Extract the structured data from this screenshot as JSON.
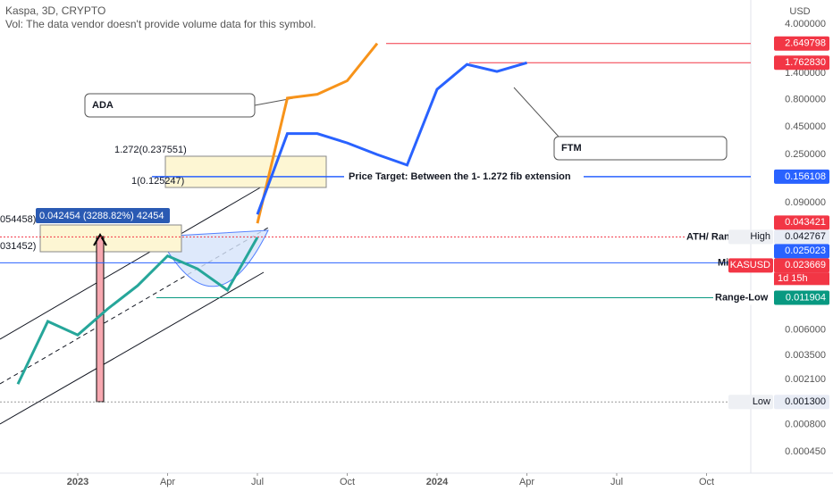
{
  "header": {
    "symbol": "Kaspa, 3D, CRYPTO",
    "volume_note": "Vol: The data vendor doesn't provide volume data for this symbol.",
    "currency": "USD"
  },
  "chart_data": {
    "type": "line",
    "log_scale": true,
    "ylim": [
      0.000286,
      6.68
    ],
    "yticks": [
      {
        "value": 4,
        "label": "4.000000"
      },
      {
        "value": 1.4,
        "label": "1.400000"
      },
      {
        "value": 0.8,
        "label": "0.800000"
      },
      {
        "value": 0.45,
        "label": "0.450000"
      },
      {
        "value": 0.25,
        "label": "0.250000"
      },
      {
        "value": 0.09,
        "label": "0.090000"
      },
      {
        "value": 0.006,
        "label": "0.006000"
      },
      {
        "value": 0.0035,
        "label": "0.003500"
      },
      {
        "value": 0.0021,
        "label": "0.002100"
      },
      {
        "value": 0.0008,
        "label": "0.000800"
      },
      {
        "value": 0.00045,
        "label": "0.000450"
      }
    ],
    "xticks": [
      {
        "value": "2023-01",
        "label": "2023"
      },
      {
        "value": "2023-04",
        "label": "Apr"
      },
      {
        "value": "2023-07",
        "label": "Jul"
      },
      {
        "value": "2023-10",
        "label": "Oct"
      },
      {
        "value": "2024-01",
        "label": "2024"
      },
      {
        "value": "2024-04",
        "label": "Apr"
      },
      {
        "value": "2024-07",
        "label": "Jul"
      },
      {
        "value": "2024-10",
        "label": "Oct"
      }
    ],
    "series": [
      {
        "name": "KASUSD",
        "color": "#26a69a",
        "x": [
          "2022-11",
          "2022-12",
          "2023-01",
          "2023-02",
          "2023-03",
          "2023-04",
          "2023-05",
          "2023-06",
          "2023-07"
        ],
        "values": [
          0.0019,
          0.0072,
          0.0054,
          0.0094,
          0.0154,
          0.029,
          0.022,
          0.014,
          0.043
        ]
      },
      {
        "name": "ADA",
        "color": "#f7931a",
        "x": [
          "2023-07",
          "2023-08",
          "2023-09",
          "2023-10",
          "2023-11"
        ],
        "values": [
          0.058,
          0.83,
          0.9,
          1.2,
          2.65
        ]
      },
      {
        "name": "FTM",
        "color": "#2962ff",
        "x": [
          "2023-07",
          "2023-08",
          "2023-09",
          "2023-10",
          "2023-11",
          "2023-12",
          "2024-01",
          "2024-02",
          "2024-03",
          "2024-04"
        ],
        "values": [
          0.07,
          0.39,
          0.39,
          0.32,
          0.25,
          0.2,
          1.0,
          1.7,
          1.46,
          1.76
        ]
      }
    ],
    "levels": [
      {
        "value": 2.649798,
        "color": "#f23645"
      },
      {
        "value": 1.76283,
        "label": "1.762830",
        "color": "#f23645"
      },
      {
        "value": 0.156108,
        "color": "#2962ff"
      },
      {
        "value": 0.043421,
        "color": "#f23645"
      },
      {
        "value": 0.042767,
        "color": "#e8ecf5",
        "tag": "High"
      },
      {
        "value": 0.025023,
        "color": "#2962ff"
      },
      {
        "value": 0.023669,
        "color": "#f23645",
        "tag": "KASUSD",
        "countdown": "1d 15h"
      },
      {
        "value": 0.011904,
        "color": "#089981"
      },
      {
        "value": 0.0013,
        "label": "0.001300",
        "color": "#e8ecf5",
        "tag": "Low"
      }
    ],
    "annotations": {
      "ada": "ADA",
      "ftm": "FTM",
      "fib_1272": "1.272(0.237551)",
      "fib_1": "1(0.125247)",
      "target": "Price Target: Between the 1- 1.272 fib extension",
      "ath": "ATH/ Range-",
      "mid": "Mi",
      "range_low": "Range-Low",
      "measure": "0.042454 (3288.82%) 42454",
      "left_a": "054458)",
      "left_b": "031452)"
    }
  }
}
